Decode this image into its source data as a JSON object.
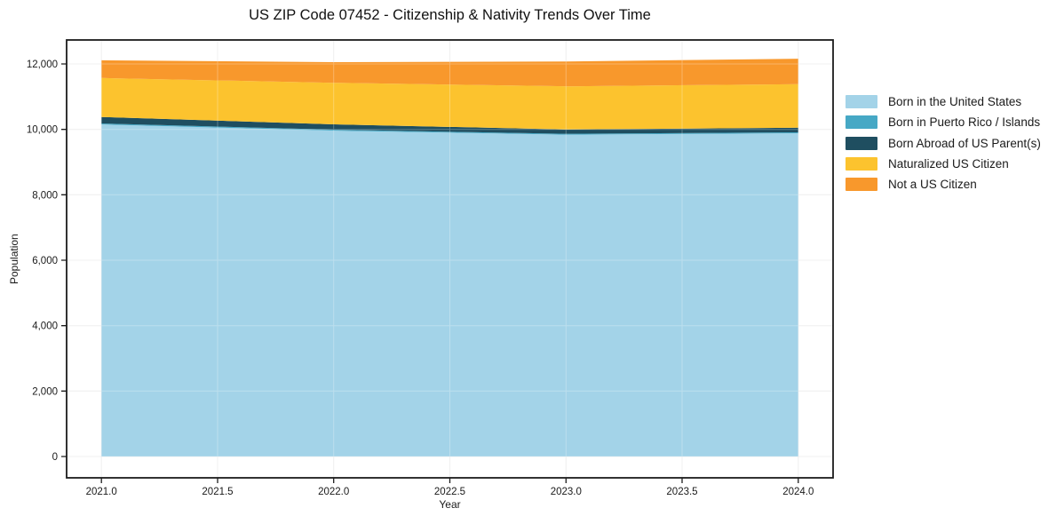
{
  "title": "US ZIP Code 07452 - Citizenship & Nativity Trends Over Time",
  "chart_data": {
    "type": "area",
    "stacked": true,
    "title": "US ZIP Code 07452 - Citizenship & Nativity Trends Over Time",
    "xlabel": "Year",
    "ylabel": "Population",
    "x": [
      2021,
      2022,
      2023,
      2024
    ],
    "series": [
      {
        "name": "Born in the United States",
        "color": "#A3D3E8",
        "values": [
          10150,
          9960,
          9840,
          9880
        ]
      },
      {
        "name": "Born in Puerto Rico / Islands",
        "color": "#46A8C5",
        "values": [
          30,
          30,
          25,
          30
        ]
      },
      {
        "name": "Born Abroad of US Parent(s)",
        "color": "#1F4E60",
        "values": [
          200,
          165,
          130,
          140
        ]
      },
      {
        "name": "Naturalized US Citizen",
        "color": "#FCC32E",
        "values": [
          1190,
          1270,
          1320,
          1330
        ]
      },
      {
        "name": "Not a US Citizen",
        "color": "#F8982C",
        "values": [
          540,
          630,
          760,
          780
        ]
      }
    ],
    "xticks": {
      "values": [
        2021.0,
        2021.5,
        2022.0,
        2022.5,
        2023.0,
        2023.5,
        2024.0
      ],
      "labels": [
        "2021.0",
        "2021.5",
        "2022.0",
        "2022.5",
        "2023.0",
        "2023.5",
        "2024.0"
      ]
    },
    "yticks": {
      "values": [
        0,
        2000,
        4000,
        6000,
        8000,
        10000,
        12000
      ],
      "labels": [
        "0",
        "2,000",
        "4,000",
        "6,000",
        "8,000",
        "10,000",
        "12,000"
      ]
    },
    "xlim": [
      2020.85,
      2024.15
    ],
    "ylim": [
      -652,
      12733
    ],
    "grid": true,
    "legend_position": "right"
  },
  "colors": {
    "background": "#FFFFFF",
    "spine": "#1C1C1C",
    "grid": "#EBEBEB",
    "text": "#1A1A1A"
  }
}
